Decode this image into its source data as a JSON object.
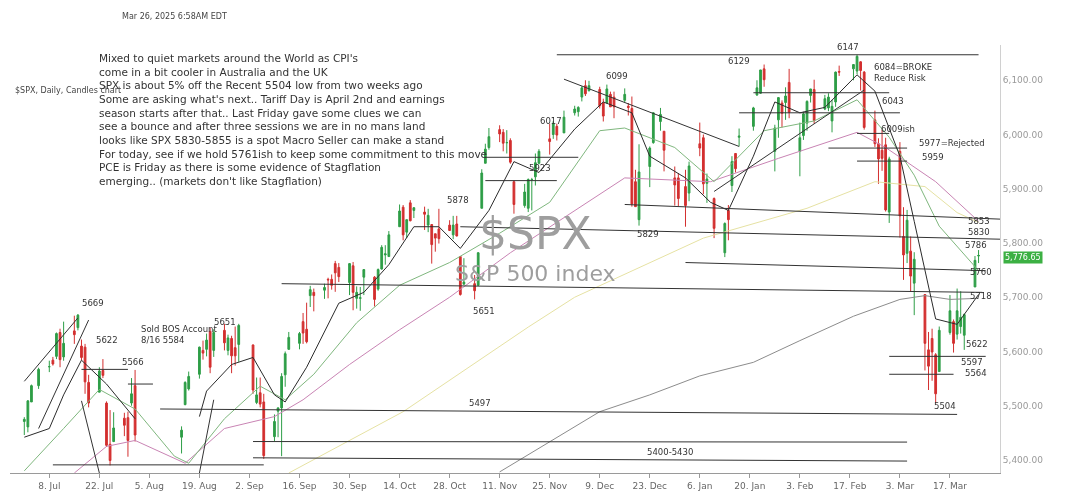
{
  "chart_data": {
    "type": "candlestick",
    "title": "$SPX, Daily, Candles chart",
    "subtitle": "Mar 26, 2025 6:58AM EDT",
    "x": [
      "2024-07-01",
      "2024-07-02",
      "2024-07-03",
      "2024-07-05",
      "2024-07-08",
      "2024-07-09",
      "2024-07-10",
      "2024-07-11",
      "2024-07-12",
      "2024-07-15",
      "2024-07-16",
      "2024-07-17",
      "2024-07-18",
      "2024-07-19",
      "2024-07-22",
      "2024-07-23",
      "2024-07-24",
      "2024-07-25",
      "2024-07-26",
      "2024-07-29",
      "2024-07-30",
      "2024-07-31",
      "2024-08-01",
      "2024-08-14",
      "2024-08-15",
      "2024-08-16",
      "2024-08-19",
      "2024-08-20",
      "2024-08-21",
      "2024-08-22",
      "2024-08-23",
      "2024-08-26",
      "2024-08-27",
      "2024-08-28",
      "2024-08-29",
      "2024-08-30",
      "2024-09-03",
      "2024-09-04",
      "2024-09-05",
      "2024-09-06",
      "2024-09-09",
      "2024-09-10",
      "2024-09-11",
      "2024-09-12",
      "2024-09-13",
      "2024-09-16",
      "2024-09-17",
      "2024-09-18",
      "2024-09-19",
      "2024-09-20",
      "2024-09-23",
      "2024-09-24",
      "2024-09-25",
      "2024-09-26",
      "2024-09-27",
      "2024-09-30",
      "2024-10-01",
      "2024-10-02",
      "2024-10-03",
      "2024-10-04",
      "2024-10-07",
      "2024-10-08",
      "2024-10-09",
      "2024-10-10",
      "2024-10-11",
      "2024-10-14",
      "2024-10-15",
      "2024-10-16",
      "2024-10-17",
      "2024-10-18",
      "2024-10-21",
      "2024-10-22",
      "2024-10-23",
      "2024-10-24",
      "2024-10-25",
      "2024-10-28",
      "2024-10-29",
      "2024-10-30",
      "2024-10-31",
      "2024-11-01",
      "2024-11-04",
      "2024-11-05",
      "2024-11-06",
      "2024-11-07",
      "2024-11-08",
      "2024-11-11",
      "2024-11-12",
      "2024-11-13",
      "2024-11-14",
      "2024-11-15",
      "2024-11-18",
      "2024-11-19",
      "2024-11-20",
      "2024-11-21",
      "2024-11-22",
      "2024-11-25",
      "2024-11-26",
      "2024-11-27",
      "2024-11-29",
      "2024-12-02",
      "2024-12-03",
      "2024-12-04",
      "2024-12-05",
      "2024-12-06",
      "2024-12-09",
      "2024-12-10",
      "2024-12-11",
      "2024-12-12",
      "2024-12-13",
      "2024-12-16",
      "2024-12-17",
      "2024-12-18",
      "2024-12-19",
      "2024-12-20",
      "2024-12-23",
      "2024-12-24",
      "2024-12-26",
      "2024-12-27",
      "2024-12-30",
      "2024-12-31",
      "2025-01-02",
      "2025-01-03",
      "2025-01-06",
      "2025-01-07",
      "2025-01-08",
      "2025-01-10",
      "2025-01-13",
      "2025-01-14",
      "2025-01-15",
      "2025-01-16",
      "2025-01-17",
      "2025-01-21",
      "2025-01-22",
      "2025-01-23",
      "2025-01-24",
      "2025-01-27",
      "2025-01-28",
      "2025-01-29",
      "2025-01-30",
      "2025-01-31",
      "2025-02-03",
      "2025-02-04",
      "2025-02-05",
      "2025-02-06",
      "2025-02-07",
      "2025-02-10",
      "2025-02-11",
      "2025-02-12",
      "2025-02-13",
      "2025-02-14",
      "2025-02-18",
      "2025-02-19",
      "2025-02-20",
      "2025-02-21",
      "2025-02-24",
      "2025-02-25",
      "2025-02-26",
      "2025-02-27",
      "2025-02-28",
      "2025-03-03",
      "2025-03-04",
      "2025-03-05",
      "2025-03-06",
      "2025-03-07",
      "2025-03-10",
      "2025-03-11",
      "2025-03-12",
      "2025-03-13",
      "2025-03-14",
      "2025-03-17",
      "2025-03-18",
      "2025-03-19",
      "2025-03-20",
      "2025-03-21",
      "2025-03-24",
      "2025-03-25"
    ],
    "ohlc": [
      [
        5471,
        5479,
        5446,
        5475
      ],
      [
        5461,
        5510,
        5451,
        5509
      ],
      [
        5507,
        5539,
        5507,
        5537
      ],
      [
        5537,
        5570,
        5531,
        5567
      ],
      [
        5572,
        5583,
        5562,
        5572
      ],
      [
        5584,
        5590,
        5574,
        5577
      ],
      [
        5591,
        5635,
        5586,
        5633
      ],
      [
        5635,
        5642,
        5571,
        5585
      ],
      [
        5590,
        5655,
        5583,
        5615
      ],
      [
        5638,
        5666,
        5614,
        5631
      ],
      [
        5644,
        5669,
        5639,
        5667
      ],
      [
        5610,
        5622,
        5584,
        5589
      ],
      [
        5608,
        5614,
        5522,
        5544
      ],
      [
        5543,
        5557,
        5497,
        5505
      ],
      [
        5525,
        5571,
        5525,
        5564
      ],
      [
        5565,
        5586,
        5551,
        5556
      ],
      [
        5505,
        5508,
        5424,
        5427
      ],
      [
        5429,
        5492,
        5390,
        5399
      ],
      [
        5434,
        5488,
        5433,
        5459
      ],
      [
        5477,
        5487,
        5444,
        5464
      ],
      [
        5478,
        5489,
        5406,
        5436
      ],
      [
        5505,
        5551,
        5500,
        5522
      ],
      [
        5537,
        5566,
        5434,
        5446
      ],
      [
        5442,
        5462,
        5412,
        5455
      ],
      [
        5502,
        5545,
        5501,
        5543
      ],
      [
        5531,
        5563,
        5528,
        5554
      ],
      [
        5558,
        5609,
        5550,
        5608
      ],
      [
        5602,
        5620,
        5585,
        5597
      ],
      [
        5604,
        5633,
        5591,
        5621
      ],
      [
        5637,
        5644,
        5560,
        5571
      ],
      [
        5602,
        5641,
        5590,
        5635
      ],
      [
        5639,
        5651,
        5602,
        5616
      ],
      [
        5602,
        5631,
        5593,
        5625
      ],
      [
        5624,
        5629,
        5560,
        5592
      ],
      [
        5607,
        5646,
        5574,
        5592
      ],
      [
        5613,
        5651,
        5581,
        5648
      ],
      [
        5612,
        5613,
        5522,
        5529
      ],
      [
        5506,
        5552,
        5503,
        5520
      ],
      [
        5524,
        5552,
        5497,
        5503
      ],
      [
        5507,
        5522,
        5402,
        5408
      ],
      [
        5443,
        5484,
        5435,
        5471
      ],
      [
        5490,
        5497,
        5442,
        5496
      ],
      [
        5496,
        5560,
        5407,
        5554
      ],
      [
        5557,
        5600,
        5535,
        5596
      ],
      [
        5604,
        5636,
        5603,
        5626
      ],
      [
        5615,
        5636,
        5604,
        5633
      ],
      [
        5655,
        5671,
        5614,
        5634
      ],
      [
        5641,
        5690,
        5615,
        5618
      ],
      [
        5703,
        5721,
        5682,
        5714
      ],
      [
        5709,
        5716,
        5674,
        5703
      ],
      [
        5713,
        5725,
        5697,
        5718
      ],
      [
        5733,
        5736,
        5698,
        5732
      ],
      [
        5733,
        5742,
        5714,
        5722
      ],
      [
        5762,
        5767,
        5710,
        5745
      ],
      [
        5755,
        5763,
        5728,
        5738
      ],
      [
        5727,
        5763,
        5704,
        5762
      ],
      [
        5758,
        5765,
        5676,
        5709
      ],
      [
        5698,
        5720,
        5679,
        5709
      ],
      [
        5698,
        5719,
        5675,
        5699
      ],
      [
        5737,
        5752,
        5704,
        5751
      ],
      [
        5737,
        5739,
        5683,
        5696
      ],
      [
        5715,
        5753,
        5712,
        5751
      ],
      [
        5752,
        5796,
        5751,
        5792
      ],
      [
        5778,
        5796,
        5760,
        5780
      ],
      [
        5775,
        5822,
        5775,
        5815
      ],
      [
        5830,
        5871,
        5830,
        5859
      ],
      [
        5866,
        5870,
        5805,
        5815
      ],
      [
        5820,
        5843,
        5809,
        5843
      ],
      [
        5874,
        5879,
        5840,
        5841
      ],
      [
        5860,
        5866,
        5846,
        5865
      ],
      [
        5857,
        5867,
        5824,
        5853
      ],
      [
        5833,
        5863,
        5820,
        5851
      ],
      [
        5834,
        5835,
        5762,
        5797
      ],
      [
        5817,
        5817,
        5784,
        5809
      ],
      [
        5826,
        5863,
        5799,
        5808
      ],
      [
        5833,
        5842,
        5823,
        5823
      ],
      [
        5815,
        5850,
        5807,
        5833
      ],
      [
        5835,
        5850,
        5812,
        5813
      ],
      [
        5775,
        5775,
        5703,
        5705
      ],
      [
        5724,
        5772,
        5724,
        5728
      ],
      [
        5725,
        5741,
        5696,
        5712
      ],
      [
        5722,
        5783,
        5721,
        5782
      ],
      [
        5864,
        5936,
        5864,
        5929
      ],
      [
        5947,
        5983,
        5947,
        5973
      ],
      [
        5976,
        6012,
        5972,
        5996
      ],
      [
        6009,
        6017,
        5986,
        6001
      ],
      [
        6004,
        6010,
        5969,
        5984
      ],
      [
        5985,
        6008,
        5965,
        5985
      ],
      [
        5989,
        5993,
        5946,
        5949
      ],
      [
        5913,
        5915,
        5854,
        5871
      ],
      [
        5869,
        5909,
        5865,
        5894
      ],
      [
        5864,
        5919,
        5857,
        5917
      ],
      [
        5917,
        5920,
        5860,
        5917
      ],
      [
        5922,
        5965,
        5906,
        5948
      ],
      [
        5947,
        5973,
        5945,
        5969
      ],
      [
        5992,
        6020,
        5963,
        5987
      ],
      [
        6000,
        6025,
        5992,
        6021
      ],
      [
        6015,
        6020,
        5989,
        5999
      ],
      [
        6003,
        6044,
        6003,
        6032
      ],
      [
        6040,
        6053,
        6035,
        6047
      ],
      [
        6042,
        6052,
        6033,
        6050
      ],
      [
        6069,
        6089,
        6061,
        6086
      ],
      [
        6090,
        6100,
        6071,
        6075
      ],
      [
        6081,
        6099,
        6079,
        6090
      ],
      [
        6083,
        6088,
        6048,
        6053
      ],
      [
        6058,
        6066,
        6024,
        6034
      ],
      [
        6058,
        6092,
        6058,
        6084
      ],
      [
        6074,
        6079,
        6051,
        6051
      ],
      [
        6069,
        6079,
        6030,
        6051
      ],
      [
        6063,
        6085,
        6059,
        6074
      ],
      [
        6052,
        6058,
        6035,
        6050
      ],
      [
        6048,
        6070,
        5867,
        5872
      ],
      [
        5913,
        5935,
        5867,
        5867
      ],
      [
        5843,
        5982,
        5832,
        5931
      ],
      [
        5941,
        5978,
        5903,
        5975
      ],
      [
        5985,
        6041,
        5983,
        6040
      ],
      [
        6024,
        6049,
        6007,
        6037
      ],
      [
        6006,
        6006,
        5932,
        5971
      ],
      [
        5920,
        5941,
        5869,
        5907
      ],
      [
        5920,
        5929,
        5868,
        5882
      ],
      [
        5904,
        5935,
        5830,
        5869
      ],
      [
        5892,
        5950,
        5877,
        5942
      ],
      [
        5983,
        6022,
        5960,
        5975
      ],
      [
        5994,
        6000,
        5890,
        5909
      ],
      [
        5910,
        5928,
        5874,
        5918
      ],
      [
        5882,
        5884,
        5809,
        5827
      ],
      [
        5782,
        5838,
        5774,
        5836
      ],
      [
        5860,
        5870,
        5805,
        5843
      ],
      [
        5906,
        5960,
        5894,
        5950
      ],
      [
        5965,
        5965,
        5930,
        5937
      ],
      [
        5995,
        6011,
        5978,
        5997
      ],
      [
        6015,
        6051,
        6007,
        6049
      ],
      [
        6073,
        6100,
        6071,
        6086
      ],
      [
        6076,
        6119,
        6075,
        6119
      ],
      [
        6121,
        6129,
        6088,
        6101
      ],
      [
        5969,
        6018,
        5932,
        6012
      ],
      [
        6027,
        6069,
        5994,
        6068
      ],
      [
        6058,
        6063,
        6013,
        6039
      ],
      [
        6059,
        6087,
        6027,
        6071
      ],
      [
        6096,
        6121,
        6030,
        6041
      ],
      [
        5969,
        6022,
        5923,
        5994
      ],
      [
        5998,
        6042,
        5990,
        6038
      ],
      [
        6021,
        6063,
        6007,
        6061
      ],
      [
        6072,
        6084,
        6059,
        6084
      ],
      [
        6083,
        6101,
        6020,
        6026
      ],
      [
        6047,
        6073,
        6045,
        6066
      ],
      [
        6049,
        6076,
        6043,
        6069
      ],
      [
        6025,
        6064,
        6004,
        6052
      ],
      [
        6060,
        6116,
        6051,
        6115
      ],
      [
        6116,
        6127,
        6108,
        6115
      ],
      [
        6121,
        6129,
        6100,
        6129
      ],
      [
        6117,
        6147,
        6111,
        6144
      ],
      [
        6134,
        6135,
        6081,
        6118
      ],
      [
        6115,
        6117,
        6009,
        6013
      ],
      [
        6027,
        6044,
        5977,
        5983
      ],
      [
        5983,
        5993,
        5909,
        5955
      ],
      [
        5971,
        6009,
        5933,
        5956
      ],
      [
        5981,
        5994,
        5858,
        5861
      ],
      [
        5857,
        5959,
        5837,
        5955
      ],
      [
        5969,
        5986,
        5810,
        5850
      ],
      [
        5812,
        5866,
        5732,
        5778
      ],
      [
        5781,
        5861,
        5763,
        5842
      ],
      [
        5785,
        5812,
        5711,
        5739
      ],
      [
        5726,
        5783,
        5667,
        5770
      ],
      [
        5705,
        5705,
        5565,
        5615
      ],
      [
        5603,
        5636,
        5529,
        5573
      ],
      [
        5624,
        5642,
        5546,
        5599
      ],
      [
        5594,
        5597,
        5504,
        5522
      ],
      [
        5563,
        5646,
        5563,
        5639
      ],
      [
        5635,
        5704,
        5631,
        5675
      ],
      [
        5655,
        5659,
        5598,
        5615
      ],
      [
        5632,
        5716,
        5622,
        5675
      ],
      [
        5646,
        5711,
        5633,
        5663
      ],
      [
        5630,
        5670,
        5603,
        5668
      ],
      [
        5719,
        5776,
        5719,
        5768
      ],
      [
        5776,
        5787,
        5763,
        5777
      ]
    ],
    "series": [
      {
        "type": "line",
        "color": "#8c8c8c",
        "x": [
          "2024-11-11",
          "2024-12-09",
          "2024-12-23",
          "2025-01-06",
          "2025-01-21",
          "2025-02-03",
          "2025-02-18",
          "2025-03-03",
          "2025-03-10",
          "2025-03-17",
          "2025-03-25"
        ],
        "values": [
          5378,
          5489,
          5520,
          5555,
          5580,
          5620,
          5665,
          5696,
          5703,
          5696,
          5698
        ]
      },
      {
        "type": "line",
        "color": "#e6e2a3",
        "x": [
          "2024-09-13",
          "2024-10-15",
          "2024-11-19",
          "2024-12-02",
          "2025-01-07",
          "2025-02-05",
          "2025-02-24",
          "2025-03-10",
          "2025-03-19",
          "2025-03-25"
        ],
        "values": [
          5376,
          5489,
          5645,
          5700,
          5809,
          5864,
          5913,
          5904,
          5856,
          5838
        ]
      },
      {
        "type": "line",
        "color": "#c984b4",
        "x": [
          "2024-07-15",
          "2024-07-24",
          "2024-08-01",
          "2024-08-15",
          "2024-08-26",
          "2024-09-09",
          "2024-09-17",
          "2024-09-30",
          "2024-10-14",
          "2024-10-28",
          "2024-11-14",
          "2024-12-16",
          "2025-01-09",
          "2025-01-28",
          "2025-02-19",
          "2025-02-27",
          "2025-03-13",
          "2025-03-25"
        ],
        "values": [
          5376,
          5425,
          5436,
          5394,
          5458,
          5480,
          5511,
          5576,
          5640,
          5700,
          5782,
          5920,
          5913,
          5956,
          6004,
          5976,
          5913,
          5840
        ]
      },
      {
        "type": "line",
        "color": "#7fb77e",
        "x": [
          "2024-07-01",
          "2024-07-12",
          "2024-07-22",
          "2024-08-01",
          "2024-08-12",
          "2024-08-16",
          "2024-08-26",
          "2024-09-05",
          "2024-09-12",
          "2024-09-20",
          "2024-10-02",
          "2024-10-14",
          "2024-10-28",
          "2024-11-11",
          "2024-11-25",
          "2024-12-09",
          "2024-12-16",
          "2024-12-30",
          "2025-01-10",
          "2025-01-24",
          "2025-02-07",
          "2025-02-19",
          "2025-02-28",
          "2025-03-07",
          "2025-03-14",
          "2025-03-25"
        ],
        "values": [
          5380,
          5458,
          5530,
          5494,
          5407,
          5394,
          5476,
          5536,
          5511,
          5558,
          5653,
          5722,
          5764,
          5818,
          5875,
          6007,
          6012,
          5976,
          5913,
          6007,
          6025,
          6064,
          5995,
          5925,
          5831,
          5749
        ]
      },
      {
        "type": "line",
        "color": "#2b2b2b",
        "x": [
          "2024-07-01",
          "2024-07-08",
          "2024-07-12",
          "2024-07-17",
          "2024-07-24",
          "2024-08-01",
          "2024-08-08",
          "2024-08-19",
          "2024-08-21",
          "2024-08-28",
          "2024-09-03",
          "2024-09-09",
          "2024-09-12",
          "2024-09-18",
          "2024-09-27",
          "2024-10-04",
          "2024-10-11",
          "2024-10-18",
          "2024-10-25",
          "2024-10-31",
          "2024-11-08",
          "2024-11-15",
          "2024-11-22",
          "2024-12-02",
          "2024-12-10",
          "2024-12-18",
          "2024-12-23",
          "2025-01-02",
          "2025-01-09",
          "2025-01-14",
          "2025-01-21",
          "2025-01-27",
          "2025-02-03",
          "2025-02-10",
          "2025-02-19",
          "2025-02-24",
          "2025-03-03",
          "2025-03-07",
          "2025-03-13",
          "2025-03-19",
          "2025-03-25"
        ],
        "values": [
          5442,
          5458,
          5520,
          5584,
          5540,
          5476,
          null,
          5480,
          5527,
          5576,
          5589,
          5520,
          5507,
          5571,
          5689,
          5709,
          5760,
          5830,
          5830,
          5790,
          5860,
          5950,
          5930,
          6010,
          6060,
          6040,
          5960,
          5920,
          5875,
          5860,
          5960,
          6060,
          6040,
          6050,
          6110,
          6080,
          5960,
          5840,
          5660,
          5650,
          5705
        ]
      },
      {
        "type": "line",
        "color": "#333333",
        "x": [
          "2024-11-27",
          "2025-03-25"
        ],
        "values": [
          6147,
          6147
        ]
      },
      {
        "type": "line",
        "color": "#333333",
        "x": [
          "2024-11-29",
          "2025-01-17"
        ],
        "values": [
          6102,
          5978
        ]
      },
      {
        "type": "line",
        "color": "#333333",
        "x": [
          "2025-01-10",
          "2025-02-21"
        ],
        "values": [
          5895,
          6082
        ]
      },
      {
        "type": "line",
        "color": "#333333",
        "x": [
          "2024-12-16",
          "2025-03-31"
        ],
        "values": [
          5871,
          5844
        ]
      },
      {
        "type": "line",
        "color": "#333333",
        "x": [
          "2024-10-31",
          "2025-03-31"
        ],
        "values": [
          5830,
          5807
        ]
      },
      {
        "type": "line",
        "color": "#333333",
        "x": [
          "2025-01-02",
          "2025-03-27"
        ],
        "values": [
          5764,
          5749
        ]
      },
      {
        "type": "line",
        "color": "#333333",
        "x": [
          "2024-09-11",
          "2025-03-26"
        ],
        "values": [
          5725,
          5709
        ]
      },
      {
        "type": "line",
        "color": "#333333",
        "x": [
          "2024-08-08",
          "2025-03-19"
        ],
        "values": [
          5494,
          5484
        ]
      },
      {
        "type": "line",
        "color": "#333333",
        "x": [
          "2024-09-03",
          "2025-03-05"
        ],
        "values": [
          5434,
          5433
        ]
      },
      {
        "type": "line",
        "color": "#333333",
        "x": [
          "2024-09-03",
          "2025-03-05"
        ],
        "values": [
          5404,
          5398
        ]
      },
      {
        "type": "line",
        "color": "#333333",
        "x": [
          "2024-07-09",
          "2024-09-06"
        ],
        "values": [
          5391,
          5391
        ]
      },
      {
        "type": "line",
        "color": "#333333",
        "x": [
          "2024-07-17",
          "2024-07-30"
        ],
        "values": [
          5567,
          5567
        ]
      },
      {
        "type": "line",
        "color": "#333333",
        "x": [
          "2024-07-30",
          "2024-08-06"
        ],
        "values": [
          5540,
          5540
        ]
      },
      {
        "type": "line",
        "color": "#333333",
        "x": [
          "2025-01-21",
          "2025-02-28"
        ],
        "values": [
          6077,
          6077
        ]
      },
      {
        "type": "line",
        "color": "#333333",
        "x": [
          "2025-01-17",
          "2025-03-03"
        ],
        "values": [
          6040,
          6040
        ]
      },
      {
        "type": "line",
        "color": "#333333",
        "x": [
          "2025-02-19",
          "2025-02-28"
        ],
        "values": [
          6002,
          6002
        ]
      },
      {
        "type": "line",
        "color": "#333333",
        "x": [
          "2025-02-11",
          "2025-03-05"
        ],
        "values": [
          5975,
          5975
        ]
      },
      {
        "type": "line",
        "color": "#333333",
        "x": [
          "2025-02-19",
          "2025-03-05"
        ],
        "values": [
          5951,
          5951
        ]
      },
      {
        "type": "line",
        "color": "#333333",
        "x": [
          "2025-02-28",
          "2025-03-27"
        ],
        "values": [
          5591,
          5591
        ]
      },
      {
        "type": "line",
        "color": "#333333",
        "x": [
          "2025-02-28",
          "2025-03-18"
        ],
        "values": [
          5558,
          5558
        ]
      },
      {
        "type": "line",
        "color": "#333333",
        "x": [
          "2024-07-01",
          "2024-07-16"
        ],
        "values": [
          5545,
          5662
        ]
      },
      {
        "type": "line",
        "color": "#333333",
        "x": [
          "2024-07-05",
          "2024-07-19"
        ],
        "values": [
          5458,
          5658
        ]
      },
      {
        "type": "line",
        "color": "#333333",
        "x": [
          "2024-11-07",
          "2024-12-03"
        ],
        "values": [
          5958,
          5958
        ]
      },
      {
        "type": "line",
        "color": "#333333",
        "x": [
          "2024-11-07",
          "2024-11-27"
        ],
        "values": [
          5915,
          5915
        ]
      },
      {
        "type": "line",
        "color": "#333333",
        "x": [
          "2024-07-17",
          "2024-07-22"
        ],
        "values": [
          5509,
          5376
        ]
      },
      {
        "type": "line",
        "color": "#333333",
        "x": [
          "2024-08-23",
          "2024-08-19"
        ],
        "values": [
          5511,
          5376
        ]
      }
    ],
    "xlim": [
      "2024-06-27",
      "2025-03-31"
    ],
    "xticks": [
      {
        "value": "2024-07-08",
        "label": "8. Jul"
      },
      {
        "value": "2024-07-22",
        "label": "22. Jul"
      },
      {
        "value": "2024-08-05",
        "label": "5. Aug"
      },
      {
        "value": "2024-08-19",
        "label": "19. Aug"
      },
      {
        "value": "2024-09-02",
        "label": "2. Sep"
      },
      {
        "value": "2024-09-16",
        "label": "16. Sep"
      },
      {
        "value": "2024-09-30",
        "label": "30. Sep"
      },
      {
        "value": "2024-10-14",
        "label": "14. Oct"
      },
      {
        "value": "2024-10-28",
        "label": "28. Oct"
      },
      {
        "value": "2024-11-11",
        "label": "11. Nov"
      },
      {
        "value": "2024-11-25",
        "label": "25. Nov"
      },
      {
        "value": "2024-12-09",
        "label": "9. Dec"
      },
      {
        "value": "2024-12-23",
        "label": "23. Dec"
      },
      {
        "value": "2025-01-06",
        "label": "6. Jan"
      },
      {
        "value": "2025-01-20",
        "label": "20. Jan"
      },
      {
        "value": "2025-02-03",
        "label": "3. Feb"
      },
      {
        "value": "2025-02-17",
        "label": "17. Feb"
      },
      {
        "value": "2025-03-03",
        "label": "3. Mar"
      },
      {
        "value": "2025-03-17",
        "label": "17. Mar"
      }
    ],
    "ylim": [
      5376,
      6165
    ],
    "yticks": [
      {
        "value": 5400,
        "label": "5,400.00"
      },
      {
        "value": 5500,
        "label": "5,500.00"
      },
      {
        "value": 5600,
        "label": "5,600.00"
      },
      {
        "value": 5700,
        "label": "5,700.00"
      },
      {
        "value": 5800,
        "label": "5,800.00"
      },
      {
        "value": 5900,
        "label": "5,900.00"
      },
      {
        "value": 6000,
        "label": "6,000.00"
      },
      {
        "value": 6100,
        "label": "6,100.00"
      }
    ],
    "annotations": [
      "Mixed to quiet markets around the World as CPI's\ncome in a bit cooler in Australia and the UK\nSPX is about 5% off the Recent 5504 low from two weeks ago\nSome are asking what's next.. Tariff Day is April 2nd and earnings\nseason starts after that.. Last Friday gave some clues we can\nsee a bounce and after three sessions we are in no mans land\nlooks like SPX 5830-5855 is a spot Macro Seller can make a stand\nFor today, see if we hold 5761ish to keep some commitment to this move\nPCE is Friday as there is some evidence of Stagflation\nemerging.. (markets don't like Stagflation)",
      "Sold BOS Account\n8/16 5584",
      "$SPX",
      "S&P 500 index",
      "5669",
      "5622",
      "5566",
      "5651",
      "5878",
      "5651",
      "5497",
      "5923",
      "6017",
      "6099",
      "5829",
      "5400-5430",
      "6129",
      "6147",
      "6084=BROKE\nReduce Risk",
      "6043",
      "6009ish",
      "5977=Rejected",
      "5959",
      "5853",
      "5830",
      "5786",
      "5760",
      "5718",
      "5622",
      "5597",
      "5564",
      "5504",
      "5,776.65"
    ]
  }
}
